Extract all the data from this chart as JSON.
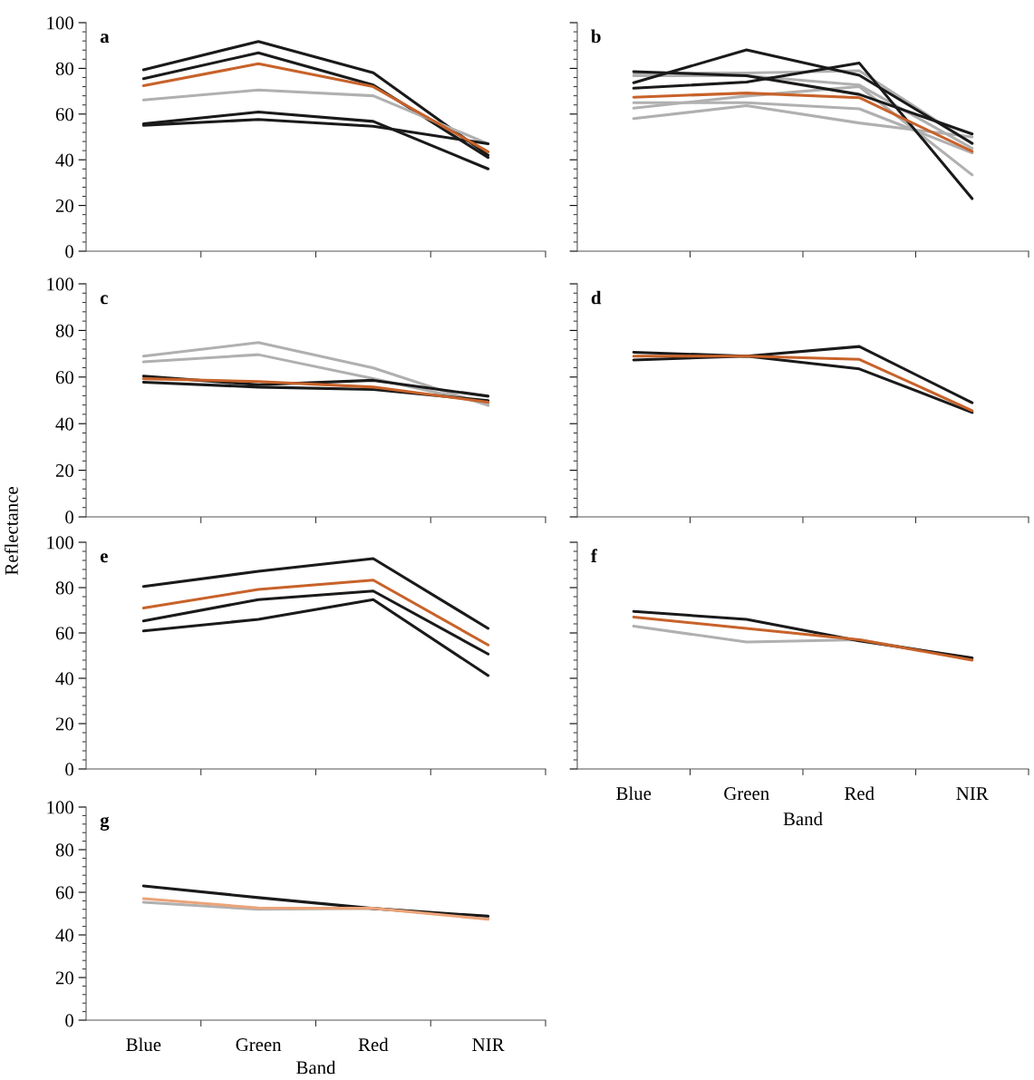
{
  "chart_data": [
    {
      "type": "line",
      "title": "a",
      "categories": [
        "Blue",
        "Green",
        "Red",
        "NIR"
      ],
      "ylim": [
        0,
        100
      ],
      "yticks": [
        0,
        20,
        40,
        60,
        80,
        100
      ],
      "tick_labels": "y",
      "grid": false,
      "legend": false,
      "series": [
        {
          "color": "#1a1a1a",
          "values": [
            79.4,
            91.8,
            78.1,
            42
          ]
        },
        {
          "color": "#1a1a1a",
          "values": [
            75.5,
            86.8,
            72.7,
            41
          ]
        },
        {
          "color": "#b0b0b0",
          "values": [
            66.2,
            70.5,
            68,
            47
          ]
        },
        {
          "color": "#1a1a1a",
          "values": [
            55.7,
            60.9,
            56.8,
            36
          ]
        },
        {
          "color": "#1a1a1a",
          "values": [
            55.1,
            57.6,
            54.7,
            47
          ]
        },
        {
          "color": "#c8622a",
          "values": [
            72.4,
            82,
            72,
            43.5
          ]
        }
      ]
    },
    {
      "type": "line",
      "title": "b",
      "categories": [
        "Blue",
        "Green",
        "Red",
        "NIR"
      ],
      "ylim": [
        0,
        100
      ],
      "yticks": [
        0,
        20,
        40,
        60,
        80,
        100
      ],
      "tick_labels": false,
      "grid": false,
      "legend": false,
      "series": [
        {
          "color": "#b0b0b0",
          "values": [
            78,
            78,
            79,
            47
          ]
        },
        {
          "color": "#b0b0b0",
          "values": [
            76.8,
            76.8,
            72.7,
            45
          ]
        },
        {
          "color": "#b0b0b0",
          "values": [
            65,
            65,
            62.3,
            43
          ]
        },
        {
          "color": "#b0b0b0",
          "values": [
            62.6,
            67.9,
            72,
            33.4
          ]
        },
        {
          "color": "#b0b0b0",
          "values": [
            58,
            63.7,
            56.1,
            50
          ]
        },
        {
          "color": "#1a1a1a",
          "values": [
            73.7,
            88.1,
            77,
            47.2
          ]
        },
        {
          "color": "#1a1a1a",
          "values": [
            71.3,
            74,
            82.3,
            23
          ]
        },
        {
          "color": "#1a1a1a",
          "values": [
            78.6,
            76.8,
            68.6,
            51.3
          ]
        },
        {
          "color": "#c8622a",
          "values": [
            67.4,
            69.2,
            67.2,
            43.7
          ]
        }
      ]
    },
    {
      "type": "line",
      "title": "c",
      "ylabel": "Reflectance",
      "categories": [
        "Blue",
        "Green",
        "Red",
        "NIR"
      ],
      "ylim": [
        0,
        100
      ],
      "yticks": [
        0,
        20,
        40,
        60,
        80,
        100
      ],
      "tick_labels": "y",
      "grid": false,
      "legend": false,
      "series": [
        {
          "color": "#b0b0b0",
          "values": [
            69,
            74.8,
            63.9,
            47.8
          ]
        },
        {
          "color": "#b0b0b0",
          "values": [
            66.5,
            69.6,
            59.3,
            48.5
          ]
        },
        {
          "color": "#1a1a1a",
          "values": [
            60.4,
            56.7,
            58.6,
            51.8
          ]
        },
        {
          "color": "#1a1a1a",
          "values": [
            57.8,
            55.7,
            54.7,
            49.9
          ]
        },
        {
          "color": "#c8622a",
          "values": [
            59.3,
            58.1,
            55.7,
            49.2
          ]
        }
      ]
    },
    {
      "type": "line",
      "title": "d",
      "categories": [
        "Blue",
        "Green",
        "Red",
        "NIR"
      ],
      "ylim": [
        0,
        100
      ],
      "yticks": [
        0,
        20,
        40,
        60,
        80,
        100
      ],
      "tick_labels": false,
      "grid": false,
      "legend": false,
      "series": [
        {
          "color": "#1a1a1a",
          "values": [
            70.6,
            69,
            73.1,
            49
          ]
        },
        {
          "color": "#1a1a1a",
          "values": [
            67.3,
            69,
            63.5,
            44.8
          ]
        },
        {
          "color": "#c8622a",
          "values": [
            69,
            69,
            67.6,
            45.6
          ]
        }
      ]
    },
    {
      "type": "line",
      "title": "e",
      "categories": [
        "Blue",
        "Green",
        "Red",
        "NIR"
      ],
      "ylim": [
        0,
        100
      ],
      "yticks": [
        0,
        20,
        40,
        60,
        80,
        100
      ],
      "tick_labels": "y",
      "grid": false,
      "legend": false,
      "series": [
        {
          "color": "#1a1a1a",
          "values": [
            80.5,
            87.2,
            92.8,
            62
          ]
        },
        {
          "color": "#1a1a1a",
          "values": [
            65.3,
            74.7,
            78.5,
            50.7
          ]
        },
        {
          "color": "#1a1a1a",
          "values": [
            60.9,
            66,
            74.7,
            41.2
          ]
        },
        {
          "color": "#c8622a",
          "values": [
            71,
            79.2,
            83.3,
            54.7
          ]
        }
      ]
    },
    {
      "type": "line",
      "title": "f",
      "xlabel": "Band",
      "categories": [
        "Blue",
        "Green",
        "Red",
        "NIR"
      ],
      "ylim": [
        0,
        100
      ],
      "yticks": [
        0,
        20,
        40,
        60,
        80,
        100
      ],
      "tick_labels": "x",
      "grid": false,
      "legend": false,
      "series": [
        {
          "color": "#b0b0b0",
          "values": [
            63,
            56,
            57,
            48.5
          ]
        },
        {
          "color": "#1a1a1a",
          "values": [
            69.5,
            66,
            56.5,
            49
          ]
        },
        {
          "color": "#c8622a",
          "values": [
            67,
            62,
            57,
            48
          ]
        }
      ]
    },
    {
      "type": "line",
      "title": "g",
      "xlabel": "Band",
      "categories": [
        "Blue",
        "Green",
        "Red",
        "NIR"
      ],
      "ylim": [
        0,
        100
      ],
      "yticks": [
        0,
        20,
        40,
        60,
        80,
        100
      ],
      "grid": false,
      "legend": false,
      "series": [
        {
          "color": "#b0b0b0",
          "values": [
            55.3,
            52,
            52.5,
            48
          ]
        },
        {
          "color": "#1a1a1a",
          "values": [
            63,
            57.5,
            52.4,
            48.8
          ]
        },
        {
          "color": "#eba479",
          "values": [
            57,
            52.7,
            52.5,
            47.3
          ]
        }
      ]
    }
  ]
}
